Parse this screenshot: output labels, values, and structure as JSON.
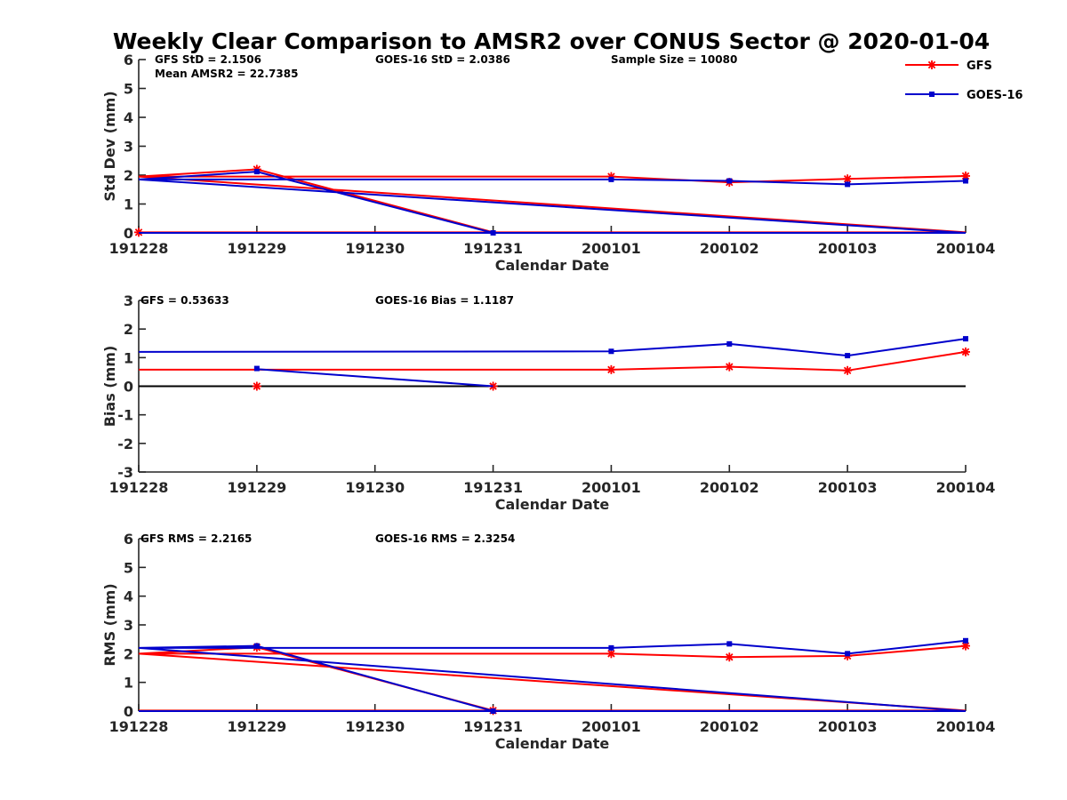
{
  "title": "Weekly Clear Comparison to AMSR2 over CONUS Sector @ 2020-01-04",
  "legend": {
    "position": "top-right",
    "items": [
      {
        "label": "GFS",
        "color": "#ff0000",
        "marker": "asterisk"
      },
      {
        "label": "GOES-16",
        "color": "#0000cc",
        "marker": "square"
      }
    ]
  },
  "chart_data": [
    {
      "type": "line",
      "ylabel": "Std Dev (mm)",
      "xlabel": "Calendar Date",
      "ylim": [
        0,
        6
      ],
      "yticks": [
        0,
        1,
        2,
        3,
        4,
        5,
        6
      ],
      "xticks": [
        "191228",
        "191229",
        "191230",
        "191231",
        "200101",
        "200102",
        "200103",
        "200104"
      ],
      "stats": [
        {
          "text": "GFS StD = 2.1506",
          "row": 0,
          "col": 0
        },
        {
          "text": "GOES-16 StD = 2.0386",
          "row": 0,
          "col": 1
        },
        {
          "text": "Sample Size = 10080",
          "row": 0,
          "col": 2
        },
        {
          "text": "Mean AMSR2 = 22.7385",
          "row": 1,
          "col": 0
        }
      ],
      "series": [
        {
          "name": "GFS",
          "color": "#ff0000",
          "marker": "asterisk",
          "points": [
            [
              0,
              1.95
            ],
            [
              1,
              2.2
            ],
            [
              3,
              0.02
            ],
            [
              0,
              0.02
            ],
            [
              7,
              0.02
            ],
            [
              0,
              1.95
            ],
            [
              4,
              1.95
            ],
            [
              5,
              1.75
            ],
            [
              6,
              1.87
            ],
            [
              7,
              1.97
            ]
          ],
          "markers": [
            1,
            3,
            6,
            7,
            8,
            9
          ]
        },
        {
          "name": "GOES-16",
          "color": "#0000cc",
          "marker": "square",
          "points": [
            [
              0,
              1.85
            ],
            [
              1,
              2.12
            ],
            [
              3,
              0.0
            ],
            [
              0,
              0.0
            ],
            [
              7,
              0.0
            ],
            [
              0,
              1.85
            ],
            [
              4,
              1.85
            ],
            [
              5,
              1.8
            ],
            [
              6,
              1.68
            ],
            [
              7,
              1.8
            ]
          ],
          "markers": [
            1,
            2,
            6,
            7,
            8,
            9
          ]
        }
      ],
      "zero_line": false
    },
    {
      "type": "line",
      "ylabel": "Bias (mm)",
      "xlabel": "Calendar Date",
      "ylim": [
        -3,
        3
      ],
      "yticks": [
        -3,
        -2,
        -1,
        0,
        1,
        2,
        3
      ],
      "xticks": [
        "191228",
        "191229",
        "191230",
        "191231",
        "200101",
        "200102",
        "200103",
        "200104"
      ],
      "stats": [
        {
          "text": "GFS = 0.53633",
          "row": 0,
          "col": 0
        },
        {
          "text": "GOES-16 Bias  = 1.1187",
          "row": 0,
          "col": 1
        }
      ],
      "series": [
        {
          "name": "GFS",
          "color": "#ff0000",
          "marker": "asterisk",
          "points": [
            [
              0,
              0.58
            ],
            [
              4,
              0.58
            ],
            [
              5,
              0.68
            ],
            [
              6,
              0.55
            ],
            [
              7,
              1.2
            ]
          ],
          "extra_markers": [
            [
              1,
              0.0
            ],
            [
              3,
              0.0
            ]
          ],
          "markers": [
            1,
            2,
            3,
            4
          ]
        },
        {
          "name": "GOES-16",
          "color": "#0000cc",
          "marker": "square",
          "points": [
            [
              0,
              1.2
            ],
            [
              4,
              1.22
            ],
            [
              5,
              1.48
            ],
            [
              6,
              1.07
            ],
            [
              7,
              1.66
            ]
          ],
          "extra_lines": [
            [
              [
                1,
                0.6
              ],
              [
                3,
                0.0
              ]
            ]
          ],
          "extra_markers": [
            [
              1,
              0.62
            ]
          ],
          "markers": [
            1,
            2,
            3,
            4
          ]
        }
      ],
      "zero_line": true
    },
    {
      "type": "line",
      "ylabel": "RMS (mm)",
      "xlabel": "Calendar Date",
      "ylim": [
        0,
        6
      ],
      "yticks": [
        0,
        1,
        2,
        3,
        4,
        5,
        6
      ],
      "xticks": [
        "191228",
        "191229",
        "191230",
        "191231",
        "200101",
        "200102",
        "200103",
        "200104"
      ],
      "stats": [
        {
          "text": "GFS RMS = 2.2165",
          "row": 0,
          "col": 0
        },
        {
          "text": "GOES-16 RMS = 2.3254",
          "row": 0,
          "col": 1
        }
      ],
      "series": [
        {
          "name": "GFS",
          "color": "#ff0000",
          "marker": "asterisk",
          "points": [
            [
              0,
              2.0
            ],
            [
              1,
              2.22
            ],
            [
              3,
              0.02
            ],
            [
              0,
              0.02
            ],
            [
              7,
              0.02
            ],
            [
              0,
              2.0
            ],
            [
              4,
              2.0
            ],
            [
              5,
              1.88
            ],
            [
              6,
              1.92
            ],
            [
              7,
              2.27
            ]
          ],
          "markers": [
            1,
            2,
            6,
            7,
            8,
            9
          ]
        },
        {
          "name": "GOES-16",
          "color": "#0000cc",
          "marker": "square",
          "points": [
            [
              0,
              2.2
            ],
            [
              1,
              2.27
            ],
            [
              3,
              0.0
            ],
            [
              0,
              0.0
            ],
            [
              7,
              0.0
            ],
            [
              0,
              2.2
            ],
            [
              4,
              2.2
            ],
            [
              5,
              2.34
            ],
            [
              6,
              2.0
            ],
            [
              7,
              2.45
            ]
          ],
          "markers": [
            1,
            2,
            6,
            7,
            8,
            9
          ]
        }
      ],
      "zero_line": false
    }
  ]
}
